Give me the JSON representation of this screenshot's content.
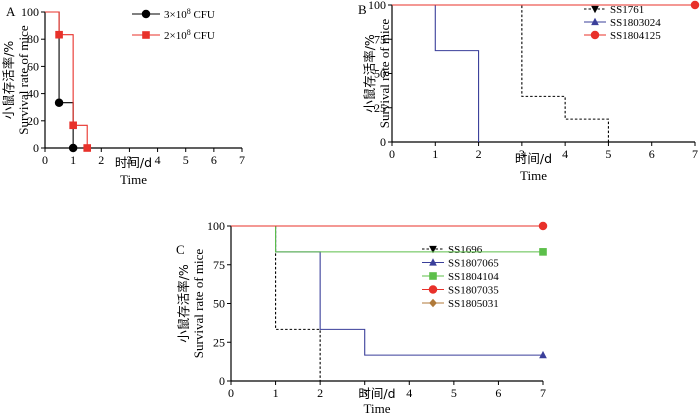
{
  "chart_data": [
    {
      "panel": "A",
      "type": "line",
      "step": true,
      "xlabel_cn": "时间/d",
      "xlabel": "Time",
      "ylabel_cn": "小鼠存活率/%",
      "ylabel": "Survival rate of mice",
      "xlim": [
        0,
        7
      ],
      "ylim": [
        0,
        100
      ],
      "xticks": [
        0,
        1,
        2,
        3,
        4,
        5,
        6,
        7
      ],
      "yticks": [
        0,
        20,
        40,
        60,
        80,
        100
      ],
      "legend_position": "top-right",
      "series": [
        {
          "name": "3×10",
          "name_sup": "8",
          "name_suffix": " CFU",
          "color": "#000000",
          "marker": "circle",
          "dash": false,
          "x": [
            0,
            0.5,
            1
          ],
          "y": [
            100,
            33.3,
            0
          ],
          "markers": [
            [
              0.5,
              33.3
            ],
            [
              1,
              0
            ]
          ]
        },
        {
          "name": "2×10",
          "name_sup": "8",
          "name_suffix": " CFU",
          "color": "#e8312a",
          "marker": "square",
          "dash": false,
          "x": [
            0,
            0.5,
            1,
            1.5
          ],
          "y": [
            100,
            83.3,
            16.7,
            0
          ],
          "markers": [
            [
              0.5,
              83.3
            ],
            [
              1,
              16.7
            ],
            [
              1.5,
              0
            ]
          ]
        }
      ]
    },
    {
      "panel": "B",
      "type": "line",
      "step": true,
      "xlabel_cn": "时间/d",
      "xlabel": "Time",
      "ylabel_cn": "小鼠存活率/%",
      "ylabel": "Survival rate of mice",
      "xlim": [
        0,
        7
      ],
      "ylim": [
        0,
        100
      ],
      "xticks": [
        0,
        1,
        2,
        3,
        4,
        5,
        6,
        7
      ],
      "yticks": [
        0,
        25,
        50,
        75,
        100
      ],
      "legend_position": "right",
      "series": [
        {
          "name": "SS1761",
          "color": "#000000",
          "marker": "triangle-down",
          "dash": true,
          "x": [
            0,
            2,
            3,
            4,
            5
          ],
          "y": [
            100,
            100,
            33.3,
            16.7,
            0
          ],
          "markers": []
        },
        {
          "name": "SS1803024",
          "color": "#3a3f9a",
          "marker": "triangle-up",
          "dash": false,
          "x": [
            0,
            1,
            2
          ],
          "y": [
            100,
            66.7,
            0
          ],
          "markers": []
        },
        {
          "name": "SS1804125",
          "color": "#e8312a",
          "marker": "circle",
          "dash": false,
          "x": [
            0,
            7
          ],
          "y": [
            100,
            100
          ],
          "markers": [
            [
              7,
              100
            ]
          ]
        }
      ]
    },
    {
      "panel": "C",
      "type": "line",
      "step": true,
      "xlabel_cn": "时间/d",
      "xlabel": "Time",
      "ylabel_cn": "小鼠存活率/%",
      "ylabel": "Survival rate of mice",
      "xlim": [
        0,
        7
      ],
      "ylim": [
        0,
        100
      ],
      "xticks": [
        0,
        1,
        2,
        3,
        4,
        5,
        6,
        7
      ],
      "yticks": [
        0,
        25,
        50,
        75,
        100
      ],
      "legend_position": "right",
      "series": [
        {
          "name": "SS1696",
          "color": "#000000",
          "marker": "triangle-down",
          "dash": true,
          "x": [
            0,
            1,
            2
          ],
          "y": [
            100,
            33.3,
            0
          ],
          "markers": []
        },
        {
          "name": "SS1807065",
          "color": "#3a3f9a",
          "marker": "triangle-up",
          "dash": false,
          "x": [
            0,
            1,
            2,
            3,
            7
          ],
          "y": [
            100,
            83.3,
            33.3,
            16.7,
            16.7
          ],
          "markers": [
            [
              7,
              16.7
            ]
          ]
        },
        {
          "name": "SS1804104",
          "color": "#5cbf4a",
          "marker": "square",
          "dash": false,
          "x": [
            0,
            1,
            7
          ],
          "y": [
            100,
            83.3,
            83.3
          ],
          "markers": [
            [
              7,
              83.3
            ]
          ]
        },
        {
          "name": "SS1807035",
          "color": "#e8312a",
          "marker": "circle",
          "dash": false,
          "x": [
            0,
            7
          ],
          "y": [
            100,
            100
          ],
          "markers": [
            [
              7,
              100
            ]
          ]
        },
        {
          "name": "SS1805031",
          "color": "#b07a3a",
          "marker": "diamond",
          "dash": false,
          "x": [],
          "y": [],
          "markers": []
        }
      ]
    }
  ]
}
